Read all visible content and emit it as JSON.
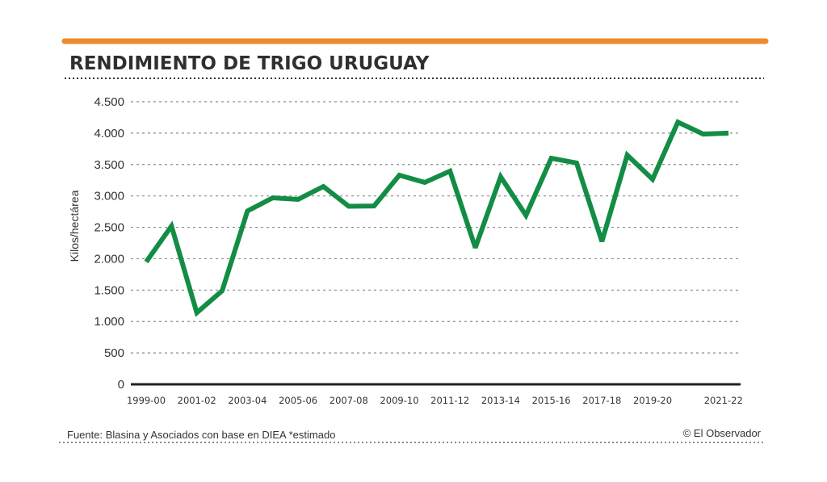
{
  "colors": {
    "accent_bar": "#ec8a2e",
    "line": "#138d45",
    "text": "#2f2f2f",
    "grid": "#8a8a8a"
  },
  "footer": {
    "source": "Fuente: Blasina y Asociados con base en DIEA *estimado",
    "credit": "© El Observador"
  },
  "chart_data": {
    "type": "line",
    "title": "RENDIMIENTO DE TRIGO URUGUAY",
    "xlabel": "",
    "ylabel": "Kilos/hectárea",
    "ylim": [
      0,
      4500
    ],
    "grid": true,
    "yticks": [
      0,
      500,
      1000,
      1500,
      2000,
      2500,
      3000,
      3500,
      4000,
      4500
    ],
    "ytick_labels": [
      "0",
      "500",
      "1.000",
      "1.500",
      "2.000",
      "2.500",
      "3.000",
      "3.500",
      "4.000",
      "4.500"
    ],
    "xtick_labels": [
      {
        "index": 0,
        "label": "1999-00"
      },
      {
        "index": 2,
        "label": "2001-02"
      },
      {
        "index": 4,
        "label": "2003-04"
      },
      {
        "index": 6,
        "label": "2005-06"
      },
      {
        "index": 8,
        "label": "2007-08"
      },
      {
        "index": 10,
        "label": "2009-10"
      },
      {
        "index": 12,
        "label": "2011-12"
      },
      {
        "index": 14,
        "label": "2013-14"
      },
      {
        "index": 16,
        "label": "2015-16"
      },
      {
        "index": 18,
        "label": "2017-18"
      },
      {
        "index": 20,
        "label": "2019-20"
      },
      {
        "index": 22.8,
        "label": "2021-22"
      }
    ],
    "series": [
      {
        "name": "Rendimiento",
        "values": [
          1950,
          2520,
          1140,
          1490,
          2760,
          2970,
          2945,
          3150,
          2835,
          2840,
          3330,
          3215,
          3395,
          2175,
          3305,
          2690,
          3600,
          3525,
          2275,
          3650,
          3265,
          4175,
          3985,
          4000
        ]
      }
    ]
  }
}
